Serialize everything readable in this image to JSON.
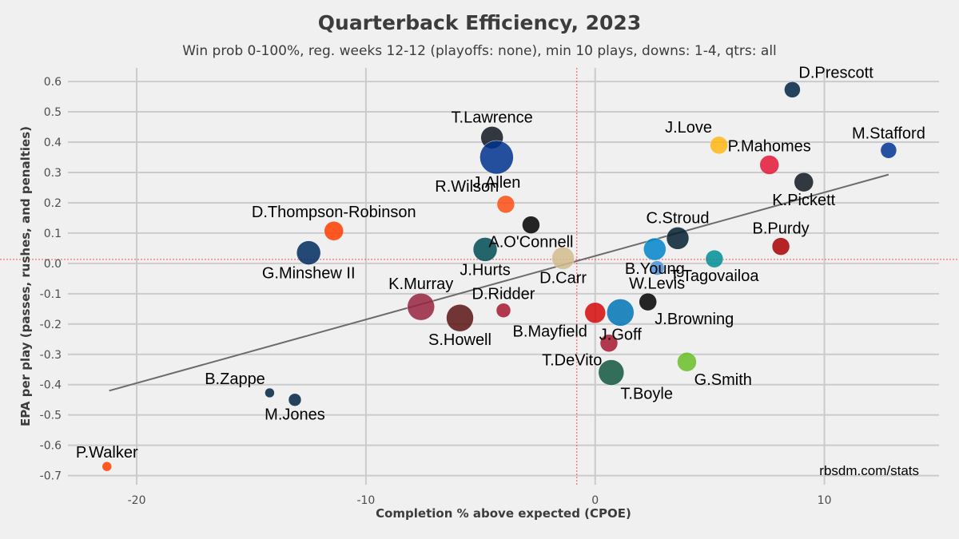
{
  "chart_data": {
    "type": "scatter",
    "title": "Quarterback Efficiency, 2023",
    "subtitle": "Win prob 0-100%, reg. weeks 12-12 (playoffs: none), min 10 plays, downs: 1-4, qtrs: all",
    "xlabel": "Completion % above expected (CPOE)",
    "ylabel": "EPA per play (passes, rushes, and penalties)",
    "credit": "rbsdm.com/stats",
    "xlim": [
      -23,
      15
    ],
    "ylim": [
      -0.73,
      0.645
    ],
    "xticks": [
      -20,
      -10,
      0,
      10
    ],
    "yticks": [
      -0.7,
      -0.6,
      -0.5,
      -0.4,
      -0.3,
      -0.2,
      -0.1,
      0.0,
      0.1,
      0.2,
      0.3,
      0.4,
      0.5,
      0.6
    ],
    "grid": true,
    "reference_lines": {
      "x": -0.8,
      "y": 0.013
    },
    "trend_line": {
      "x": [
        -21.2,
        12.8
      ],
      "y": [
        -0.42,
        0.293
      ]
    },
    "points": [
      {
        "name": "D.Prescott",
        "x": 8.6,
        "y": 0.573,
        "size": 10,
        "color": "#002244",
        "label_pos": "ur"
      },
      {
        "name": "M.Stafford",
        "x": 12.8,
        "y": 0.373,
        "size": 10,
        "color": "#003594",
        "label_pos": "u"
      },
      {
        "name": "J.Love",
        "x": 5.4,
        "y": 0.39,
        "size": 11,
        "color": "#FFB612",
        "label_pos": "ul"
      },
      {
        "name": "P.Mahomes",
        "x": 7.6,
        "y": 0.325,
        "size": 12,
        "color": "#E31837",
        "label_pos": "u"
      },
      {
        "name": "K.Pickett",
        "x": 9.1,
        "y": 0.268,
        "size": 12,
        "color": "#101820",
        "label_pos": "d"
      },
      {
        "name": "T.Lawrence",
        "x": -4.5,
        "y": 0.415,
        "size": 14,
        "color": "#101820",
        "label_pos": "u"
      },
      {
        "name": "J.Allen",
        "x": -4.3,
        "y": 0.35,
        "size": 21,
        "color": "#00338D",
        "label_pos": "d"
      },
      {
        "name": "R.Wilson",
        "x": -3.9,
        "y": 0.195,
        "size": 11,
        "color": "#FB4F14",
        "label_pos": "ul"
      },
      {
        "name": "A.O'Connell",
        "x": -2.8,
        "y": 0.127,
        "size": 11,
        "color": "#000000",
        "label_pos": "d"
      },
      {
        "name": "D.Thompson-Robinson",
        "x": -11.4,
        "y": 0.107,
        "size": 12,
        "color": "#FF3C00",
        "label_pos": "u"
      },
      {
        "name": "G.Minshew II",
        "x": -12.5,
        "y": 0.035,
        "size": 15,
        "color": "#002C5F",
        "label_pos": "d"
      },
      {
        "name": "J.Hurts",
        "x": -4.8,
        "y": 0.046,
        "size": 15,
        "color": "#004C54",
        "label_pos": "d"
      },
      {
        "name": "D.Carr",
        "x": -1.4,
        "y": 0.017,
        "size": 14,
        "color": "#D3BC8D",
        "label_pos": "d"
      },
      {
        "name": "C.Stroud",
        "x": 3.6,
        "y": 0.083,
        "size": 14,
        "color": "#03202F",
        "label_pos": "u"
      },
      {
        "name": "B.Young",
        "x": 2.6,
        "y": 0.047,
        "size": 14,
        "color": "#0085CA",
        "label_pos": "d"
      },
      {
        "name": "B.Purdy",
        "x": 8.1,
        "y": 0.056,
        "size": 11,
        "color": "#AA0000",
        "label_pos": "u"
      },
      {
        "name": "T.Tagovailoa",
        "x": 5.2,
        "y": 0.015,
        "size": 11,
        "color": "#008E97",
        "label_pos": "d"
      },
      {
        "name": "W.Levis",
        "x": 2.7,
        "y": -0.015,
        "size": 9,
        "color": "#4B92DB",
        "label_pos": "d"
      },
      {
        "name": "K.Murray",
        "x": -7.6,
        "y": -0.143,
        "size": 17,
        "color": "#97233F",
        "label_pos": "u"
      },
      {
        "name": "S.Howell",
        "x": -5.9,
        "y": -0.18,
        "size": 17,
        "color": "#5A1414",
        "label_pos": "d"
      },
      {
        "name": "D.Ridder",
        "x": -4.0,
        "y": -0.155,
        "size": 9,
        "color": "#A71930",
        "label_pos": "u"
      },
      {
        "name": "B.Mayfield",
        "x": 0.0,
        "y": -0.163,
        "size": 13,
        "color": "#D50A0A",
        "label_pos": "dl"
      },
      {
        "name": "J.Goff",
        "x": 1.1,
        "y": -0.162,
        "size": 17,
        "color": "#0076B6",
        "label_pos": "d"
      },
      {
        "name": "J.Browning",
        "x": 2.3,
        "y": -0.127,
        "size": 11,
        "color": "#000000",
        "label_pos": "dr"
      },
      {
        "name": "T.DeVito",
        "x": 0.6,
        "y": -0.263,
        "size": 11,
        "color": "#A71930",
        "label_pos": "dl"
      },
      {
        "name": "T.Boyle",
        "x": 0.7,
        "y": -0.36,
        "size": 16,
        "color": "#125740",
        "label_pos": "dr"
      },
      {
        "name": "G.Smith",
        "x": 4.0,
        "y": -0.325,
        "size": 12,
        "color": "#69BE28",
        "label_pos": "dr"
      },
      {
        "name": "B.Zappe",
        "x": -14.2,
        "y": -0.427,
        "size": 6,
        "color": "#002244",
        "label_pos": "ul"
      },
      {
        "name": "M.Jones",
        "x": -13.1,
        "y": -0.45,
        "size": 8,
        "color": "#002244",
        "label_pos": "d"
      },
      {
        "name": "P.Walker",
        "x": -21.3,
        "y": -0.67,
        "size": 6,
        "color": "#FF3C00",
        "label_pos": "u"
      }
    ]
  }
}
